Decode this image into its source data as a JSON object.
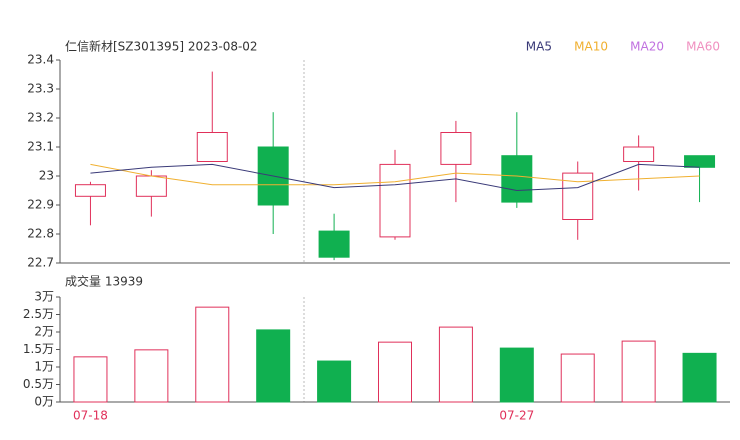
{
  "chart_data": [
    {
      "type": "candlestick",
      "title": "仁信新材[SZ301395] 2023-08-02",
      "open": [
        22.93,
        22.93,
        23.05,
        23.1,
        22.81,
        22.79,
        23.04,
        23.07,
        22.85,
        23.05,
        23.07
      ],
      "close": [
        22.97,
        23.0,
        23.15,
        22.9,
        22.72,
        23.04,
        23.15,
        22.91,
        23.01,
        23.1,
        23.03
      ],
      "high": [
        22.98,
        23.02,
        23.36,
        23.22,
        22.87,
        23.09,
        23.19,
        23.22,
        23.05,
        23.14,
        23.07
      ],
      "low": [
        22.83,
        22.86,
        23.05,
        22.8,
        22.71,
        22.78,
        22.91,
        22.89,
        22.78,
        22.95,
        22.91
      ],
      "up_color": "#e0305a",
      "down_color": "#10b050",
      "ylim": [
        22.7,
        23.4
      ],
      "yticks": [
        22.7,
        22.8,
        22.9,
        23,
        23.1,
        23.2,
        23.3,
        23.4
      ],
      "series": [
        {
          "name": "MA5",
          "color": "#3a3a78",
          "values": [
            23.01,
            23.03,
            23.04,
            23.0,
            22.96,
            22.97,
            22.99,
            22.95,
            22.96,
            23.04,
            23.03
          ]
        },
        {
          "name": "MA10",
          "color": "#f0b030",
          "values": [
            23.04,
            23.0,
            22.97,
            22.97,
            22.97,
            22.98,
            23.01,
            23.0,
            22.98,
            22.99,
            23.0
          ]
        },
        {
          "name": "MA20",
          "color": "#c070e0"
        },
        {
          "name": "MA60",
          "color": "#f090c0"
        }
      ]
    },
    {
      "type": "bar",
      "title": "成交量 13939",
      "categories": [
        "07-18",
        null,
        null,
        null,
        null,
        null,
        null,
        "07-27",
        null,
        null,
        null
      ],
      "values": [
        1.29,
        1.49,
        2.71,
        2.06,
        1.17,
        1.71,
        2.14,
        1.54,
        1.37,
        1.74,
        1.39
      ],
      "ylim": [
        0,
        3
      ],
      "yticks": [
        {
          "value": 0,
          "label": "0万"
        },
        {
          "value": 0.5,
          "label": "0.5万"
        },
        {
          "value": 1,
          "label": "1万"
        },
        {
          "value": 1.5,
          "label": "1.5万"
        },
        {
          "value": 2,
          "label": "2万"
        },
        {
          "value": 2.5,
          "label": "2.5万"
        },
        {
          "value": 3,
          "label": "3万"
        }
      ]
    }
  ]
}
